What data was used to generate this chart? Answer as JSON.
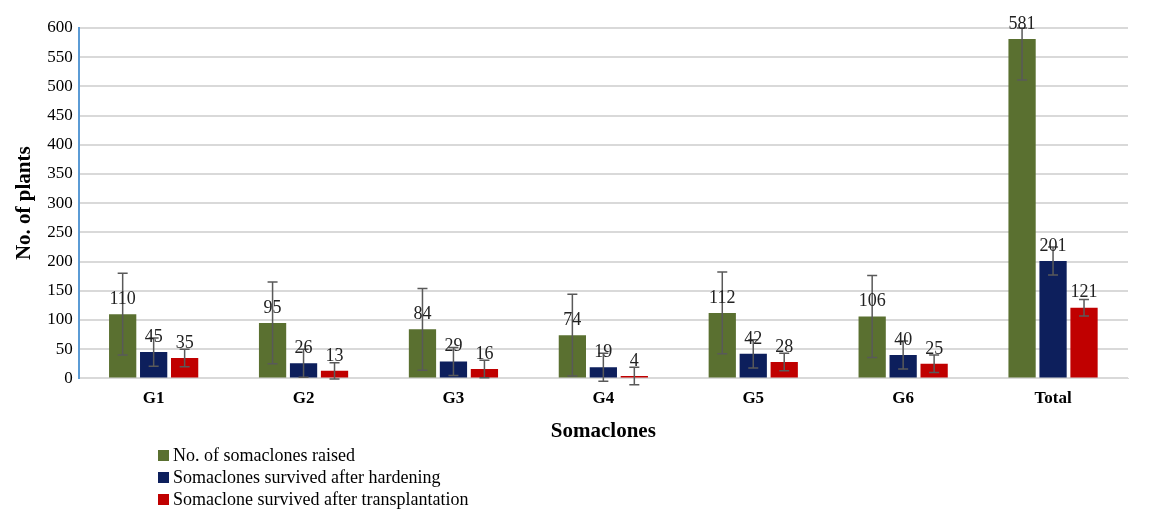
{
  "chart_data": {
    "type": "bar",
    "xlabel": "Somaclones",
    "ylabel": "No. of plants",
    "categories": [
      "G1",
      "G2",
      "G3",
      "G4",
      "G5",
      "G6",
      "Total"
    ],
    "series": [
      {
        "name": "No. of somaclones raised",
        "color": "#5a7030",
        "values": [
          110,
          95,
          84,
          74,
          112,
          106,
          581
        ],
        "errors": [
          70,
          70,
          70,
          70,
          70,
          70,
          [
            511,
            600
          ]
        ]
      },
      {
        "name": "Somaclones survived after hardening",
        "color": "#0d1f5c",
        "values": [
          45,
          26,
          29,
          19,
          42,
          40,
          201
        ],
        "errors": [
          24,
          24,
          24,
          24,
          24,
          24,
          24
        ]
      },
      {
        "name": "Somaclone  survived after transplantation",
        "color": "#c00000",
        "values": [
          35,
          13,
          16,
          4,
          28,
          25,
          121
        ],
        "errors": [
          15,
          14,
          15,
          15,
          15,
          15,
          14
        ]
      }
    ],
    "ylim": [
      0,
      600
    ],
    "yticks": [
      0,
      50,
      100,
      150,
      200,
      250,
      300,
      350,
      400,
      450,
      500,
      550,
      600
    ],
    "grid": "y",
    "legend": "bottom left",
    "data_labels": true
  }
}
